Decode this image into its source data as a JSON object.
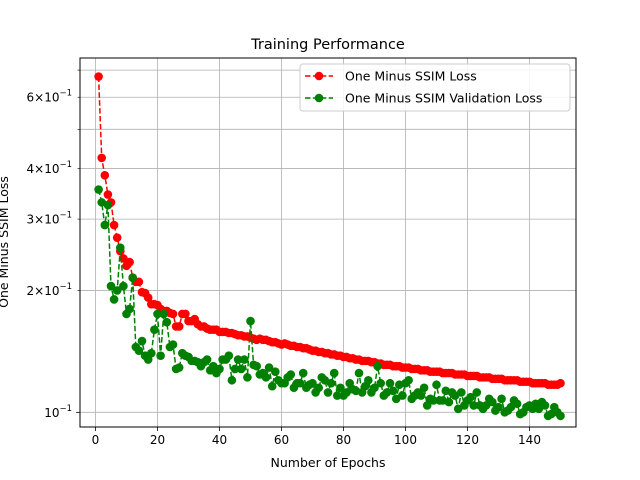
{
  "chart_data": {
    "type": "line",
    "title": "Training Performance",
    "xlabel": "Number of Epochs",
    "ylabel": "One Minus SSIM Loss",
    "yscale": "log",
    "xlim": [
      -5,
      155
    ],
    "ylim": [
      0.092,
      0.75
    ],
    "grid": true,
    "legend_position": "top-right",
    "x_ticks": [
      0,
      20,
      40,
      60,
      80,
      100,
      120,
      140
    ],
    "y_major_ticks": [
      {
        "value": 0.1,
        "label": "10^-1"
      }
    ],
    "y_minor_ticks": [
      {
        "value": 0.2,
        "label": "2×10^-1"
      },
      {
        "value": 0.3,
        "label": "3×10^-1"
      },
      {
        "value": 0.4,
        "label": "4×10^-1"
      },
      {
        "value": 0.6,
        "label": "6×10^-1"
      }
    ],
    "series": [
      {
        "name": "One Minus SSIM Loss",
        "color": "#ff0000",
        "linestyle": "dashed",
        "marker": "circle",
        "x": [
          1,
          2,
          3,
          4,
          5,
          6,
          7,
          8,
          9,
          10,
          11,
          12,
          13,
          14,
          15,
          16,
          17,
          18,
          19,
          20,
          21,
          22,
          23,
          24,
          25,
          26,
          27,
          28,
          29,
          30,
          31,
          32,
          33,
          34,
          35,
          36,
          37,
          38,
          39,
          40,
          41,
          42,
          43,
          44,
          45,
          46,
          47,
          48,
          49,
          50,
          51,
          52,
          53,
          54,
          55,
          56,
          57,
          58,
          59,
          60,
          61,
          62,
          63,
          64,
          65,
          66,
          67,
          68,
          69,
          70,
          71,
          72,
          73,
          74,
          75,
          76,
          77,
          78,
          79,
          80,
          81,
          82,
          83,
          84,
          85,
          86,
          87,
          88,
          89,
          90,
          91,
          92,
          93,
          94,
          95,
          96,
          97,
          98,
          99,
          100,
          101,
          102,
          103,
          104,
          105,
          106,
          107,
          108,
          109,
          110,
          111,
          112,
          113,
          114,
          115,
          116,
          117,
          118,
          119,
          120,
          121,
          122,
          123,
          124,
          125,
          126,
          127,
          128,
          129,
          130,
          131,
          132,
          133,
          134,
          135,
          136,
          137,
          138,
          139,
          140,
          141,
          142,
          143,
          144,
          145,
          146,
          147,
          148,
          149,
          150
        ],
        "y": [
          0.675,
          0.425,
          0.385,
          0.345,
          0.33,
          0.29,
          0.27,
          0.25,
          0.24,
          0.23,
          0.235,
          0.215,
          0.21,
          0.21,
          0.198,
          0.197,
          0.192,
          0.185,
          0.185,
          0.184,
          0.18,
          0.178,
          0.178,
          0.176,
          0.175,
          0.163,
          0.163,
          0.175,
          0.175,
          0.168,
          0.168,
          0.17,
          0.165,
          0.163,
          0.163,
          0.161,
          0.16,
          0.16,
          0.16,
          0.158,
          0.158,
          0.158,
          0.157,
          0.157,
          0.156,
          0.155,
          0.155,
          0.154,
          0.154,
          0.153,
          0.152,
          0.151,
          0.152,
          0.151,
          0.151,
          0.15,
          0.149,
          0.149,
          0.148,
          0.147,
          0.148,
          0.147,
          0.146,
          0.146,
          0.145,
          0.145,
          0.144,
          0.144,
          0.143,
          0.142,
          0.142,
          0.141,
          0.141,
          0.14,
          0.14,
          0.139,
          0.139,
          0.138,
          0.138,
          0.137,
          0.137,
          0.136,
          0.136,
          0.135,
          0.135,
          0.134,
          0.134,
          0.134,
          0.133,
          0.133,
          0.132,
          0.132,
          0.131,
          0.131,
          0.131,
          0.13,
          0.13,
          0.13,
          0.129,
          0.129,
          0.129,
          0.128,
          0.128,
          0.128,
          0.127,
          0.127,
          0.127,
          0.126,
          0.126,
          0.126,
          0.126,
          0.125,
          0.125,
          0.125,
          0.125,
          0.124,
          0.124,
          0.124,
          0.124,
          0.123,
          0.123,
          0.123,
          0.123,
          0.122,
          0.122,
          0.122,
          0.122,
          0.121,
          0.121,
          0.121,
          0.121,
          0.12,
          0.12,
          0.12,
          0.12,
          0.12,
          0.119,
          0.119,
          0.119,
          0.119,
          0.118,
          0.118,
          0.118,
          0.118,
          0.118,
          0.117,
          0.117,
          0.117,
          0.117,
          0.118
        ]
      },
      {
        "name": "One Minus SSIM Validation Loss",
        "color": "#008000",
        "linestyle": "dashed",
        "marker": "circle",
        "x": [
          1,
          2,
          3,
          4,
          5,
          6,
          7,
          8,
          9,
          10,
          11,
          12,
          13,
          14,
          15,
          16,
          17,
          18,
          19,
          20,
          21,
          22,
          23,
          24,
          25,
          26,
          27,
          28,
          29,
          30,
          31,
          32,
          33,
          34,
          35,
          36,
          37,
          38,
          39,
          40,
          41,
          42,
          43,
          44,
          45,
          46,
          47,
          48,
          49,
          50,
          51,
          52,
          53,
          54,
          55,
          56,
          57,
          58,
          59,
          60,
          61,
          62,
          63,
          64,
          65,
          66,
          67,
          68,
          69,
          70,
          71,
          72,
          73,
          74,
          75,
          76,
          77,
          78,
          79,
          80,
          81,
          82,
          83,
          84,
          85,
          86,
          87,
          88,
          89,
          90,
          91,
          92,
          93,
          94,
          95,
          96,
          97,
          98,
          99,
          100,
          101,
          102,
          103,
          104,
          105,
          106,
          107,
          108,
          109,
          110,
          111,
          112,
          113,
          114,
          115,
          116,
          117,
          118,
          119,
          120,
          121,
          122,
          123,
          124,
          125,
          126,
          127,
          128,
          129,
          130,
          131,
          132,
          133,
          134,
          135,
          136,
          137,
          138,
          139,
          140,
          141,
          142,
          143,
          144,
          145,
          146,
          147,
          148,
          149,
          150
        ],
        "y": [
          0.355,
          0.33,
          0.29,
          0.325,
          0.205,
          0.19,
          0.2,
          0.255,
          0.205,
          0.175,
          0.18,
          0.215,
          0.145,
          0.142,
          0.15,
          0.138,
          0.135,
          0.14,
          0.16,
          0.175,
          0.138,
          0.175,
          0.167,
          0.145,
          0.147,
          0.128,
          0.129,
          0.14,
          0.138,
          0.137,
          0.134,
          0.134,
          0.133,
          0.13,
          0.133,
          0.135,
          0.127,
          0.13,
          0.125,
          0.128,
          0.135,
          0.135,
          0.138,
          0.12,
          0.128,
          0.135,
          0.128,
          0.135,
          0.122,
          0.168,
          0.131,
          0.13,
          0.124,
          0.125,
          0.122,
          0.129,
          0.116,
          0.126,
          0.12,
          0.118,
          0.118,
          0.122,
          0.124,
          0.115,
          0.118,
          0.118,
          0.125,
          0.115,
          0.117,
          0.118,
          0.112,
          0.115,
          0.122,
          0.12,
          0.112,
          0.118,
          0.125,
          0.11,
          0.115,
          0.11,
          0.112,
          0.118,
          0.114,
          0.113,
          0.125,
          0.112,
          0.116,
          0.12,
          0.112,
          0.115,
          0.13,
          0.118,
          0.11,
          0.112,
          0.118,
          0.113,
          0.108,
          0.117,
          0.11,
          0.118,
          0.12,
          0.108,
          0.11,
          0.112,
          0.11,
          0.115,
          0.104,
          0.108,
          0.107,
          0.117,
          0.107,
          0.107,
          0.113,
          0.106,
          0.112,
          0.11,
          0.102,
          0.112,
          0.104,
          0.107,
          0.109,
          0.104,
          0.112,
          0.104,
          0.102,
          0.104,
          0.108,
          0.106,
          0.101,
          0.103,
          0.108,
          0.1,
          0.101,
          0.103,
          0.107,
          0.105,
          0.099,
          0.1,
          0.103,
          0.104,
          0.102,
          0.105,
          0.102,
          0.106,
          0.104,
          0.098,
          0.099,
          0.103,
          0.1,
          0.098
        ]
      }
    ]
  }
}
